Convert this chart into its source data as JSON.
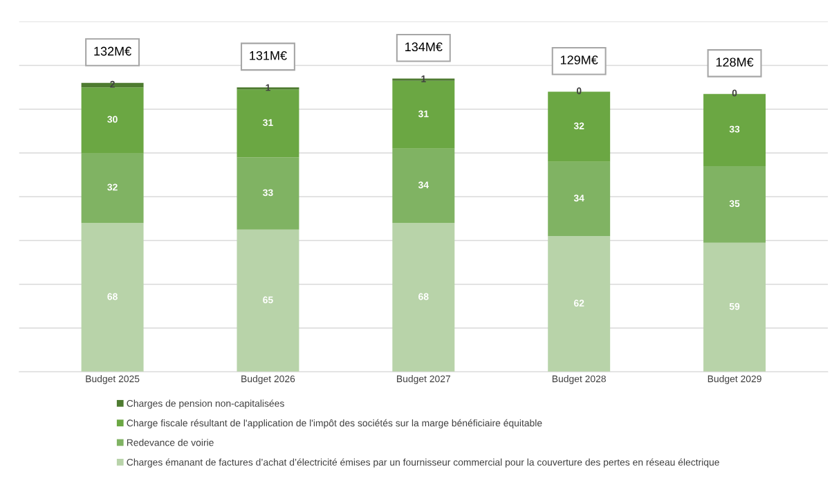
{
  "chart_data": {
    "type": "bar",
    "stacked": true,
    "categories": [
      "Budget 2025",
      "Budget 2026",
      "Budget 2027",
      "Budget 2028",
      "Budget 2029"
    ],
    "series": [
      {
        "name": "Charges émanant de factures d’achat d’électricité émises par un fournisseur commercial pour la couverture des pertes en réseau électrique",
        "color": "#b8d3a9",
        "values": [
          68,
          65,
          68,
          62,
          59
        ]
      },
      {
        "name": "Redevance de voirie",
        "color": "#80b363",
        "values": [
          32,
          33,
          34,
          34,
          35
        ]
      },
      {
        "name": "Charge fiscale résultant de l'application de l'impôt des sociétés sur la marge bénéficiaire équitable",
        "color": "#6ba743",
        "values": [
          30,
          31,
          31,
          32,
          33
        ]
      },
      {
        "name": "Charges de pension non-capitalisées",
        "color": "#4e7b30",
        "values": [
          2,
          1,
          1,
          0,
          0
        ]
      }
    ],
    "totals": [
      "132M€",
      "131M€",
      "134M€",
      "129M€",
      "128M€"
    ],
    "data_labels": true,
    "ylim": [
      0,
      160
    ],
    "yticks": [
      {
        "value": 0,
        "label": null
      },
      {
        "value": 20,
        "label": null
      },
      {
        "value": 40,
        "label": null
      },
      {
        "value": 60,
        "label": null
      },
      {
        "value": 80,
        "label": null
      },
      {
        "value": 100,
        "label": null
      },
      {
        "value": 120,
        "label": null
      },
      {
        "value": 140,
        "label": null
      },
      {
        "value": 160,
        "label": null
      }
    ],
    "tick_labels": "x",
    "grid": "y",
    "legend": "bottom"
  }
}
